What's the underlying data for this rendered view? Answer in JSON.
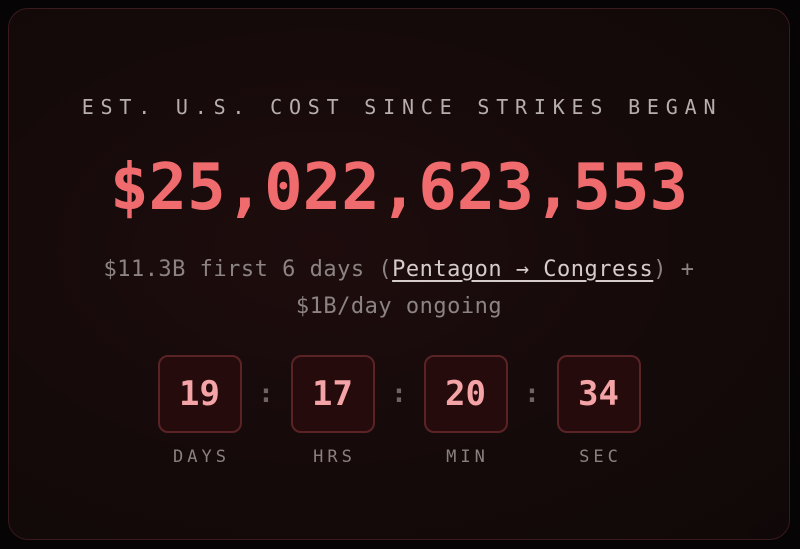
{
  "counter": {
    "title": "EST. U.S. COST SINCE STRIKES BEGAN",
    "amount": "$25,022,623,553",
    "subtitle_prefix": "$11.3B first 6 days (",
    "subtitle_link": "Pentagon → Congress",
    "subtitle_suffix_line1": ") +",
    "subtitle_line2": "$1B/day ongoing"
  },
  "timer": {
    "separator": ":",
    "units": [
      {
        "value": "19",
        "label": "DAYS"
      },
      {
        "value": "17",
        "label": "HRS"
      },
      {
        "value": "20",
        "label": "MIN"
      },
      {
        "value": "34",
        "label": "SEC"
      }
    ]
  },
  "colors": {
    "accent": "#f06b6d",
    "digit": "#f4a3a6",
    "box_bg": "#260b0c",
    "box_border": "#5a2326"
  }
}
